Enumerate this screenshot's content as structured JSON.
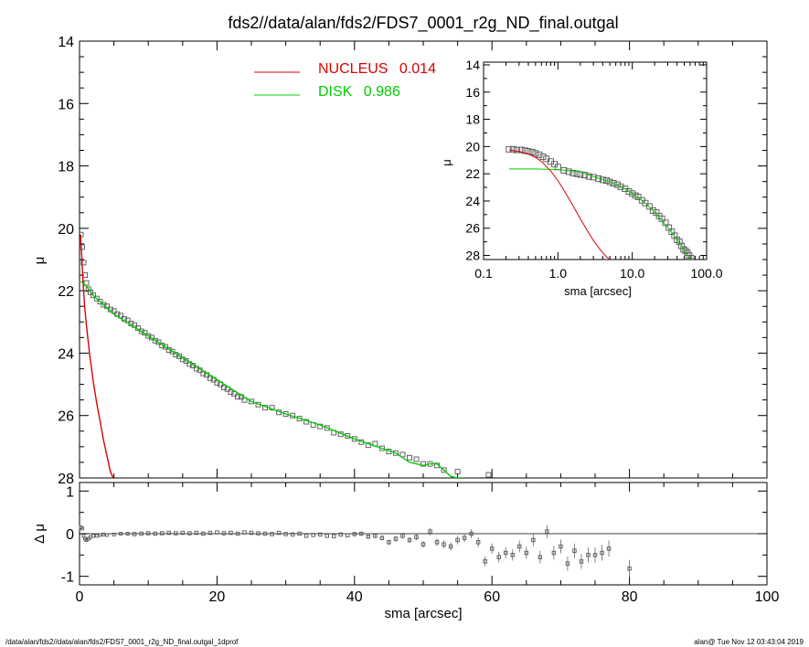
{
  "chart_data": [
    {
      "type": "scatter",
      "title": "fds2//data/alan/fds2/FDS7_0001_r2g_ND_final.outgal",
      "xlabel": "",
      "ylabel": "μ",
      "xlim": [
        0,
        100
      ],
      "ylim": [
        28,
        14
      ],
      "y_inverted": true,
      "yticks": [
        "14",
        "16",
        "18",
        "20",
        "22",
        "24",
        "26",
        "28"
      ],
      "legend": [
        {
          "label": "NUCLEUS",
          "value": "0.014",
          "color": "#dd0000"
        },
        {
          "label": "DISK",
          "value": "0.986",
          "color": "#00cc00"
        }
      ],
      "legend_placement": "top-center",
      "series": [
        {
          "name": "data",
          "marker": "open-square",
          "color": "#555555",
          "x": [
            0.2,
            0.4,
            0.6,
            0.8,
            1.0,
            1.3,
            1.6,
            2.0,
            2.5,
            3.0,
            3.5,
            4.0,
            4.5,
            5.0,
            5.5,
            6.0,
            6.5,
            7.0,
            7.5,
            8.0,
            8.5,
            9.0,
            9.5,
            10.0,
            10.5,
            11.0,
            11.5,
            12.0,
            12.5,
            13.0,
            13.5,
            14.0,
            14.5,
            15.0,
            15.5,
            16.0,
            16.5,
            17.0,
            17.5,
            18.0,
            18.5,
            19.0,
            19.5,
            20.0,
            20.5,
            21.0,
            21.5,
            22.0,
            22.5,
            23.0,
            23.5,
            24.0,
            25.0,
            26.0,
            27.0,
            28.0,
            29.0,
            30.0,
            31.0,
            32.0,
            33.0,
            34.0,
            35.0,
            36.0,
            37.0,
            38.0,
            39.0,
            40.0,
            41.0,
            42.0,
            43.0,
            44.0,
            45.0,
            46.0,
            47.0,
            48.0,
            49.0,
            50.0,
            51.0,
            52.0,
            53.0,
            55.0,
            59.5
          ],
          "y": [
            20.2,
            20.6,
            21.1,
            21.5,
            21.75,
            21.95,
            22.05,
            22.15,
            22.25,
            22.35,
            22.45,
            22.5,
            22.6,
            22.65,
            22.75,
            22.8,
            22.9,
            22.95,
            23.05,
            23.1,
            23.2,
            23.3,
            23.35,
            23.45,
            23.5,
            23.6,
            23.65,
            23.75,
            23.8,
            23.9,
            23.95,
            24.05,
            24.1,
            24.2,
            24.25,
            24.35,
            24.4,
            24.5,
            24.55,
            24.65,
            24.7,
            24.8,
            24.85,
            24.95,
            25.0,
            25.1,
            25.15,
            25.25,
            25.3,
            25.4,
            25.4,
            25.5,
            25.55,
            25.65,
            25.75,
            25.75,
            25.9,
            25.95,
            26.0,
            26.1,
            26.2,
            26.3,
            26.35,
            26.4,
            26.55,
            26.6,
            26.65,
            26.75,
            26.85,
            26.95,
            26.9,
            27.05,
            27.15,
            27.2,
            27.25,
            27.35,
            27.4,
            27.55,
            27.55,
            27.6,
            27.75,
            27.8,
            27.9
          ]
        },
        {
          "name": "NUCLEUS",
          "line": true,
          "color": "#dd0000",
          "x": [
            0.15,
            0.3,
            0.5,
            0.75,
            1.0,
            1.5,
            2.0,
            2.5,
            3.0,
            3.5,
            4.0,
            4.5,
            4.9
          ],
          "y": [
            20.2,
            20.8,
            21.7,
            22.5,
            23.1,
            24.1,
            24.9,
            25.6,
            26.2,
            26.8,
            27.3,
            27.8,
            28.0
          ]
        },
        {
          "name": "DISK",
          "line": true,
          "color": "#00cc00",
          "x": [
            0.2,
            1,
            2,
            5,
            10,
            15,
            20,
            25,
            30,
            35,
            40,
            44,
            46,
            48,
            49,
            50,
            51,
            52,
            53,
            54,
            55,
            56
          ],
          "y": [
            21.7,
            21.85,
            22.15,
            22.75,
            23.45,
            24.15,
            24.85,
            25.55,
            25.95,
            26.3,
            26.75,
            27.05,
            27.2,
            27.5,
            27.55,
            27.6,
            27.55,
            27.55,
            27.75,
            27.95,
            28.0,
            28.0
          ]
        }
      ]
    },
    {
      "type": "scatter",
      "title": "",
      "xlabel": "sma [arcsec]",
      "ylabel": "Δ μ",
      "xlim": [
        0,
        100
      ],
      "ylim": [
        -1.2,
        1.2
      ],
      "xticks": [
        "0",
        "20",
        "40",
        "60",
        "80",
        "100"
      ],
      "yticks": [
        "1",
        "0",
        "-1"
      ],
      "zero_line": true,
      "series": [
        {
          "name": "residual",
          "marker": "open-square-errorbar",
          "color": "#555555",
          "x": [
            0.2,
            0.4,
            0.6,
            0.8,
            1.0,
            1.3,
            1.6,
            2.0,
            2.5,
            3.0,
            3.5,
            4.0,
            5.0,
            6.0,
            7.0,
            8.0,
            9.0,
            10.0,
            11.0,
            12.0,
            13.0,
            14.0,
            15.0,
            16.0,
            17.0,
            18.0,
            19.0,
            20.0,
            21.0,
            22.0,
            23.0,
            24.0,
            25.0,
            26.0,
            27.0,
            28.0,
            29.0,
            30.0,
            31.0,
            32.0,
            33.0,
            34.0,
            35.0,
            36.0,
            37.0,
            38.0,
            39.0,
            40.0,
            41.0,
            42.0,
            43.0,
            44.0,
            45.0,
            46.0,
            47.0,
            48.0,
            49.0,
            50.0,
            51.0,
            52.0,
            53.0,
            54.0,
            55.0,
            56.0,
            57.0,
            58.0,
            59.0,
            60.0,
            61.0,
            62.0,
            63.0,
            64.0,
            65.0,
            66.0,
            67.0,
            68.0,
            69.0,
            70.0,
            71.0,
            72.0,
            73.0,
            74.0,
            75.0,
            76.0,
            77.0,
            80.0
          ],
          "y": [
            0.15,
            0.12,
            -0.05,
            -0.12,
            -0.15,
            -0.12,
            -0.08,
            -0.05,
            -0.05,
            -0.03,
            -0.02,
            -0.03,
            -0.02,
            0.0,
            0.0,
            -0.01,
            0.0,
            0.01,
            0.0,
            0.01,
            0.02,
            0.01,
            0.02,
            0.01,
            0.02,
            0.0,
            0.02,
            0.03,
            0.01,
            0.02,
            0.0,
            0.03,
            0.02,
            0.01,
            0.0,
            -0.01,
            0.02,
            -0.01,
            -0.02,
            0.0,
            -0.05,
            -0.03,
            -0.02,
            -0.05,
            -0.06,
            -0.02,
            -0.04,
            -0.01,
            0.0,
            -0.07,
            -0.05,
            -0.1,
            -0.2,
            -0.12,
            -0.05,
            -0.15,
            -0.08,
            -0.25,
            0.05,
            -0.2,
            -0.25,
            -0.3,
            -0.15,
            -0.1,
            0.0,
            -0.2,
            -0.65,
            -0.35,
            -0.55,
            -0.45,
            -0.5,
            -0.3,
            -0.45,
            -0.15,
            -0.55,
            0.05,
            -0.45,
            -0.3,
            -0.7,
            -0.4,
            -0.65,
            -0.5,
            -0.5,
            -0.45,
            -0.35,
            -0.82
          ]
        }
      ]
    },
    {
      "type": "scatter",
      "title": "",
      "xlabel": "sma [arcsec]",
      "ylabel": "μ",
      "x_scale": "log",
      "xlim": [
        0.1,
        100
      ],
      "ylim": [
        28.3,
        13.8
      ],
      "xticks": [
        "0.1",
        "1.0",
        "10.0",
        "100.0"
      ],
      "yticks": [
        "14",
        "16",
        "18",
        "20",
        "22",
        "24",
        "26",
        "28"
      ],
      "legend_placement": "none",
      "series": [
        {
          "name": "data",
          "marker": "open-square",
          "color": "#555555",
          "x": [
            0.22,
            0.25,
            0.28,
            0.32,
            0.36,
            0.4,
            0.45,
            0.5,
            0.56,
            0.63,
            0.7,
            0.8,
            0.9,
            1.0,
            1.2,
            1.4,
            1.6,
            1.8,
            2.0,
            2.3,
            2.6,
            3.0,
            3.5,
            4.0,
            4.5,
            5.0,
            5.6,
            6.3,
            7.0,
            8.0,
            9.0,
            10.0,
            11.0,
            12.0,
            13.5,
            15.0,
            17.0,
            19.0,
            21.0,
            23.0,
            25.0,
            28.0,
            31.0,
            34.0,
            37.0,
            40.0,
            43.0,
            46.0,
            49.0,
            52.0,
            55.0,
            58.0,
            62.0
          ],
          "y": [
            20.2,
            20.2,
            20.25,
            20.25,
            20.3,
            20.35,
            20.4,
            20.5,
            20.6,
            20.75,
            20.9,
            21.1,
            21.3,
            21.5,
            21.75,
            21.85,
            21.95,
            22.0,
            22.05,
            22.1,
            22.2,
            22.25,
            22.35,
            22.45,
            22.5,
            22.6,
            22.7,
            22.8,
            22.95,
            23.1,
            23.3,
            23.45,
            23.6,
            23.7,
            23.95,
            24.15,
            24.4,
            24.7,
            24.85,
            25.1,
            25.3,
            25.6,
            25.95,
            26.25,
            26.55,
            26.85,
            27.0,
            27.3,
            27.55,
            27.65,
            27.8,
            28.0,
            28.2
          ]
        },
        {
          "name": "NUCLEUS",
          "line": true,
          "color": "#dd0000",
          "x": [
            0.22,
            0.3,
            0.4,
            0.5,
            0.6,
            0.8,
            1.0,
            1.2,
            1.5,
            2.0,
            2.5,
            3.0,
            3.5,
            4.0,
            4.5,
            5.0
          ],
          "y": [
            20.25,
            20.35,
            20.55,
            20.8,
            21.1,
            21.8,
            22.5,
            23.2,
            24.1,
            25.3,
            26.2,
            26.9,
            27.4,
            27.8,
            28.1,
            28.3
          ]
        },
        {
          "name": "DISK",
          "line": true,
          "color": "#00cc00",
          "x": [
            0.22,
            0.5,
            1,
            2,
            3,
            5,
            8,
            10,
            15,
            20,
            30,
            40,
            50,
            60
          ],
          "y": [
            21.65,
            21.65,
            21.7,
            21.85,
            22.2,
            22.6,
            23.1,
            23.45,
            24.15,
            24.85,
            25.95,
            26.8,
            27.6,
            28.3
          ]
        }
      ]
    }
  ],
  "footer": {
    "left": "/data/alan/fds2//data/alan/fds2/FDS7_0001_r2g_ND_final.outgal_1dprof",
    "right": "alan@  Tue Nov 12 03:43:04 2019"
  }
}
